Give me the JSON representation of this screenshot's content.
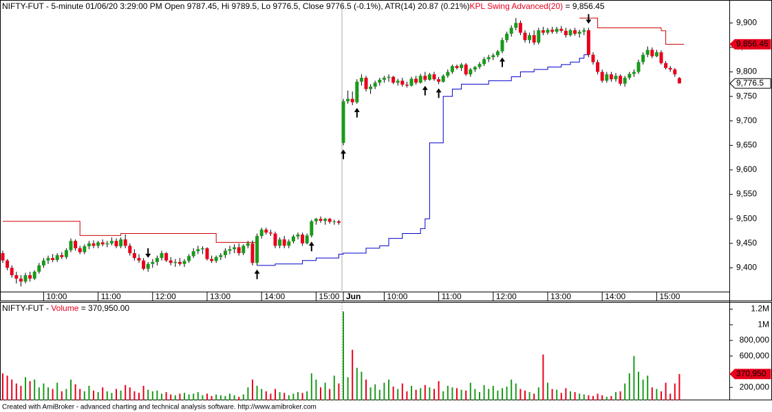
{
  "chart_data": {
    "type": "candlestick",
    "title": "NIFTY-FUT - 5-minute 01/06/20 3:29:00 PM Open 9787.45, Hi 9789.5, Lo 9776.5, Close 9776.5 (-0.1%), ATR(14) 20.87  (0.21%)",
    "indicator_name": "KPL Swing Advanced(20)",
    "indicator_value_text": " = 9,856.45",
    "volume_title": "NIFTY-FUT - ",
    "volume_name": "Volume",
    "volume_value_text": " = 370,950.00",
    "footer": "Created with AmiBroker - advanced charting and technical analysis software. http://www.amibroker.com",
    "up_color": "#1a9a1a",
    "down_color": "#e8001c",
    "ylim": [
      9350,
      9944
    ],
    "yticks": [
      {
        "value": 9400,
        "label": "9,400"
      },
      {
        "value": 9450,
        "label": "9,450"
      },
      {
        "value": 9500,
        "label": "9,500"
      },
      {
        "value": 9550,
        "label": "9,550"
      },
      {
        "value": 9600,
        "label": "9,600"
      },
      {
        "value": 9650,
        "label": "9,650"
      },
      {
        "value": 9700,
        "label": "9,700"
      },
      {
        "value": 9750,
        "label": "9,750"
      },
      {
        "value": 9800,
        "label": "9,800"
      },
      {
        "value": 9850,
        "label": "9,850"
      },
      {
        "value": 9900,
        "label": "9,900"
      }
    ],
    "volume_ylim": [
      0,
      1300000
    ],
    "volume_yticks": [
      {
        "value": 200000,
        "label": "200,000"
      },
      {
        "value": 600000,
        "label": "600,000"
      },
      {
        "value": 800000,
        "label": "800,000"
      },
      {
        "value": 1000000,
        "label": "1M"
      },
      {
        "value": 1200000,
        "label": "1.2M"
      }
    ],
    "xticks": [
      {
        "value": 9,
        "label": "10:00"
      },
      {
        "value": 21,
        "label": "11:00"
      },
      {
        "value": 33,
        "label": "12:00"
      },
      {
        "value": 45,
        "label": "13:00"
      },
      {
        "value": 57,
        "label": "14:00"
      },
      {
        "value": 69,
        "label": "15:00"
      },
      {
        "value": 75,
        "label": "Jun"
      },
      {
        "value": 84,
        "label": "10:00"
      },
      {
        "value": 96,
        "label": "11:00"
      },
      {
        "value": 108,
        "label": "12:00"
      },
      {
        "value": 120,
        "label": "13:00"
      },
      {
        "value": 132,
        "label": "14:00"
      },
      {
        "value": 144,
        "label": "15:00"
      }
    ],
    "day_break": 75,
    "candles": [
      [
        9430,
        9435,
        9410,
        9415
      ],
      [
        9415,
        9418,
        9395,
        9400
      ],
      [
        9400,
        9405,
        9380,
        9385
      ],
      [
        9385,
        9392,
        9368,
        9378
      ],
      [
        9378,
        9385,
        9362,
        9372
      ],
      [
        9372,
        9390,
        9368,
        9385
      ],
      [
        9385,
        9392,
        9372,
        9378
      ],
      [
        9378,
        9395,
        9375,
        9392
      ],
      [
        9392,
        9410,
        9388,
        9405
      ],
      [
        9405,
        9420,
        9400,
        9415
      ],
      [
        9415,
        9425,
        9408,
        9420
      ],
      [
        9420,
        9428,
        9412,
        9416
      ],
      [
        9416,
        9430,
        9412,
        9426
      ],
      [
        9426,
        9432,
        9418,
        9422
      ],
      [
        9422,
        9440,
        9418,
        9436
      ],
      [
        9436,
        9460,
        9432,
        9455
      ],
      [
        9455,
        9458,
        9435,
        9440
      ],
      [
        9440,
        9445,
        9428,
        9432
      ],
      [
        9432,
        9448,
        9428,
        9444
      ],
      [
        9444,
        9455,
        9438,
        9450
      ],
      [
        9450,
        9456,
        9440,
        9445
      ],
      [
        9445,
        9455,
        9440,
        9452
      ],
      [
        9452,
        9458,
        9444,
        9448
      ],
      [
        9448,
        9455,
        9442,
        9450
      ],
      [
        9450,
        9462,
        9446,
        9455
      ],
      [
        9455,
        9460,
        9440,
        9444
      ],
      [
        9444,
        9462,
        9440,
        9458
      ],
      [
        9458,
        9468,
        9440,
        9445
      ],
      [
        9445,
        9450,
        9425,
        9430
      ],
      [
        9430,
        9438,
        9415,
        9420
      ],
      [
        9420,
        9428,
        9410,
        9415
      ],
      [
        9415,
        9420,
        9395,
        9398
      ],
      [
        9398,
        9412,
        9392,
        9408
      ],
      [
        9408,
        9418,
        9400,
        9412
      ],
      [
        9412,
        9425,
        9405,
        9420
      ],
      [
        9420,
        9435,
        9415,
        9430
      ],
      [
        9430,
        9432,
        9412,
        9415
      ],
      [
        9415,
        9422,
        9405,
        9410
      ],
      [
        9410,
        9418,
        9402,
        9412
      ],
      [
        9412,
        9420,
        9404,
        9408
      ],
      [
        9408,
        9418,
        9402,
        9414
      ],
      [
        9414,
        9428,
        9410,
        9424
      ],
      [
        9424,
        9440,
        9420,
        9434
      ],
      [
        9434,
        9445,
        9428,
        9438
      ],
      [
        9438,
        9444,
        9428,
        9440
      ],
      [
        9440,
        9442,
        9415,
        9418
      ],
      [
        9418,
        9425,
        9410,
        9414
      ],
      [
        9414,
        9425,
        9410,
        9422
      ],
      [
        9422,
        9430,
        9416,
        9426
      ],
      [
        9426,
        9440,
        9420,
        9435
      ],
      [
        9435,
        9445,
        9428,
        9438
      ],
      [
        9438,
        9448,
        9430,
        9442
      ],
      [
        9442,
        9450,
        9425,
        9430
      ],
      [
        9430,
        9448,
        9426,
        9445
      ],
      [
        9445,
        9455,
        9440,
        9450
      ],
      [
        9450,
        9456,
        9405,
        9410
      ],
      [
        9410,
        9470,
        9405,
        9465
      ],
      [
        9465,
        9482,
        9460,
        9478
      ],
      [
        9478,
        9482,
        9468,
        9472
      ],
      [
        9472,
        9478,
        9465,
        9470
      ],
      [
        9470,
        9474,
        9440,
        9445
      ],
      [
        9445,
        9462,
        9440,
        9458
      ],
      [
        9458,
        9465,
        9440,
        9445
      ],
      [
        9445,
        9458,
        9440,
        9454
      ],
      [
        9454,
        9468,
        9450,
        9464
      ],
      [
        9464,
        9472,
        9458,
        9468
      ],
      [
        9468,
        9472,
        9445,
        9450
      ],
      [
        9450,
        9470,
        9448,
        9466
      ],
      [
        9466,
        9498,
        9462,
        9495
      ],
      [
        9495,
        9502,
        9488,
        9500
      ],
      [
        9500,
        9505,
        9492,
        9496
      ],
      [
        9496,
        9502,
        9488,
        9500
      ],
      [
        9500,
        9502,
        9490,
        9494
      ],
      [
        9494,
        9498,
        9488,
        9495
      ],
      [
        9495,
        9498,
        9488,
        9492
      ],
      [
        9655,
        9745,
        9650,
        9740
      ],
      [
        9740,
        9762,
        9735,
        9745
      ],
      [
        9745,
        9760,
        9732,
        9738
      ],
      [
        9738,
        9785,
        9735,
        9780
      ],
      [
        9780,
        9795,
        9772,
        9788
      ],
      [
        9788,
        9792,
        9760,
        9765
      ],
      [
        9765,
        9775,
        9755,
        9770
      ],
      [
        9770,
        9782,
        9765,
        9778
      ],
      [
        9778,
        9788,
        9772,
        9784
      ],
      [
        9784,
        9792,
        9778,
        9788
      ],
      [
        9788,
        9795,
        9780,
        9790
      ],
      [
        9790,
        9792,
        9775,
        9778
      ],
      [
        9778,
        9786,
        9772,
        9782
      ],
      [
        9782,
        9788,
        9770,
        9774
      ],
      [
        9774,
        9780,
        9768,
        9772
      ],
      [
        9772,
        9790,
        9770,
        9786
      ],
      [
        9786,
        9792,
        9774,
        9778
      ],
      [
        9778,
        9796,
        9776,
        9792
      ],
      [
        9792,
        9800,
        9780,
        9784
      ],
      [
        9784,
        9798,
        9782,
        9795
      ],
      [
        9795,
        9800,
        9782,
        9785
      ],
      [
        9785,
        9790,
        9775,
        9780
      ],
      [
        9780,
        9795,
        9778,
        9792
      ],
      [
        9792,
        9805,
        9788,
        9800
      ],
      [
        9800,
        9815,
        9796,
        9812
      ],
      [
        9812,
        9815,
        9805,
        9808
      ],
      [
        9808,
        9818,
        9802,
        9815
      ],
      [
        9815,
        9818,
        9792,
        9795
      ],
      [
        9795,
        9808,
        9790,
        9805
      ],
      [
        9805,
        9812,
        9800,
        9810
      ],
      [
        9810,
        9820,
        9806,
        9816
      ],
      [
        9816,
        9830,
        9812,
        9826
      ],
      [
        9826,
        9835,
        9820,
        9830
      ],
      [
        9830,
        9838,
        9824,
        9834
      ],
      [
        9834,
        9845,
        9830,
        9842
      ],
      [
        9842,
        9870,
        9838,
        9865
      ],
      [
        9865,
        9882,
        9860,
        9878
      ],
      [
        9878,
        9895,
        9872,
        9890
      ],
      [
        9890,
        9910,
        9885,
        9900
      ],
      [
        9900,
        9905,
        9875,
        9880
      ],
      [
        9880,
        9885,
        9860,
        9865
      ],
      [
        9865,
        9880,
        9858,
        9875
      ],
      [
        9875,
        9885,
        9855,
        9860
      ],
      [
        9860,
        9890,
        9856,
        9885
      ],
      [
        9885,
        9892,
        9875,
        9880
      ],
      [
        9880,
        9890,
        9876,
        9886
      ],
      [
        9886,
        9892,
        9878,
        9882
      ],
      [
        9882,
        9892,
        9878,
        9888
      ],
      [
        9888,
        9894,
        9880,
        9884
      ],
      [
        9884,
        9890,
        9870,
        9875
      ],
      [
        9875,
        9888,
        9872,
        9885
      ],
      [
        9885,
        9890,
        9874,
        9878
      ],
      [
        9878,
        9886,
        9870,
        9882
      ],
      [
        9882,
        9890,
        9875,
        9885
      ],
      [
        9885,
        9890,
        9830,
        9835
      ],
      [
        9835,
        9840,
        9815,
        9820
      ],
      [
        9820,
        9825,
        9795,
        9800
      ],
      [
        9800,
        9805,
        9778,
        9782
      ],
      [
        9782,
        9800,
        9778,
        9795
      ],
      [
        9795,
        9800,
        9780,
        9785
      ],
      [
        9785,
        9798,
        9780,
        9792
      ],
      [
        9792,
        9795,
        9772,
        9776
      ],
      [
        9776,
        9792,
        9770,
        9788
      ],
      [
        9788,
        9800,
        9784,
        9796
      ],
      [
        9796,
        9805,
        9790,
        9800
      ],
      [
        9800,
        9825,
        9796,
        9820
      ],
      [
        9820,
        9840,
        9815,
        9835
      ],
      [
        9835,
        9852,
        9830,
        9845
      ],
      [
        9845,
        9850,
        9828,
        9832
      ],
      [
        9832,
        9845,
        9830,
        9840
      ],
      [
        9840,
        9844,
        9815,
        9818
      ],
      [
        9818,
        9822,
        9805,
        9808
      ],
      [
        9808,
        9812,
        9800,
        9805
      ],
      [
        9805,
        9808,
        9790,
        9795
      ],
      [
        9787.45,
        9789.5,
        9776.5,
        9776.5
      ]
    ],
    "volume": [
      380000,
      350000,
      300000,
      250000,
      220000,
      330000,
      280000,
      300000,
      200000,
      250000,
      200000,
      180000,
      260000,
      150000,
      180000,
      300000,
      240000,
      180000,
      150000,
      220000,
      160000,
      140000,
      200000,
      150000,
      130000,
      180000,
      160000,
      230000,
      200000,
      150000,
      130000,
      220000,
      170000,
      150000,
      160000,
      120000,
      140000,
      110000,
      100000,
      120000,
      130000,
      110000,
      120000,
      140000,
      100000,
      120000,
      90000,
      110000,
      100000,
      90000,
      120000,
      100000,
      80000,
      110000,
      200000,
      300000,
      220000,
      180000,
      150000,
      120000,
      180000,
      140000,
      130000,
      100000,
      120000,
      140000,
      130000,
      150000,
      380000,
      300000,
      200000,
      260000,
      180000,
      350000,
      250000,
      1170000,
      330000,
      680000,
      450000,
      400000,
      300000,
      200000,
      240000,
      170000,
      260000,
      300000,
      210000,
      180000,
      250000,
      150000,
      220000,
      170000,
      190000,
      230000,
      200000,
      180000,
      280000,
      150000,
      220000,
      200000,
      190000,
      170000,
      160000,
      260000,
      180000,
      140000,
      230000,
      180000,
      220000,
      160000,
      190000,
      210000,
      300000,
      250000,
      180000,
      160000,
      140000,
      120000,
      200000,
      620000,
      260000,
      180000,
      170000,
      130000,
      190000,
      150000,
      140000,
      120000,
      110000,
      100000,
      90000,
      120000,
      100000,
      80000,
      90000,
      140000,
      150000,
      250000,
      380000,
      600000,
      400000,
      300000,
      350000,
      200000,
      180000,
      150000,
      260000,
      120000,
      250000,
      370950
    ],
    "series": [
      {
        "name": "KPL Swing Advanced(20)",
        "color": "#cc0000",
        "x": [
          0,
          17,
          26,
          47,
          56,
          127,
          131,
          145,
          146,
          150
        ],
        "values": [
          9495,
          9466,
          9470,
          9452,
          null,
          9910,
          9890,
          9884,
          9856.45,
          null
        ]
      },
      {
        "name": "KPL Swing Advanced(20)",
        "color": "#0000cc",
        "x": [
          56,
          60,
          66,
          69,
          74,
          75,
          80,
          83,
          85,
          88,
          92,
          93,
          94,
          97,
          99,
          101,
          107,
          112,
          114,
          117,
          120,
          123,
          125,
          127,
          128,
          129
        ],
        "values": [
          9405,
          9408,
          9415,
          9420,
          9428,
          9430,
          9440,
          9445,
          9460,
          9470,
          9480,
          9500,
          9655,
          9750,
          9765,
          9775,
          9782,
          9790,
          9800,
          9805,
          9810,
          9815,
          9820,
          9828,
          9835,
          null
        ]
      }
    ],
    "buy_bars": [
      56,
      68,
      75,
      78,
      93,
      96,
      110
    ],
    "sell_bars": [
      32,
      129
    ],
    "indicator_last_label": "9,856.45",
    "close_last_label": "9,776.5",
    "volume_last_label": "370,950"
  }
}
